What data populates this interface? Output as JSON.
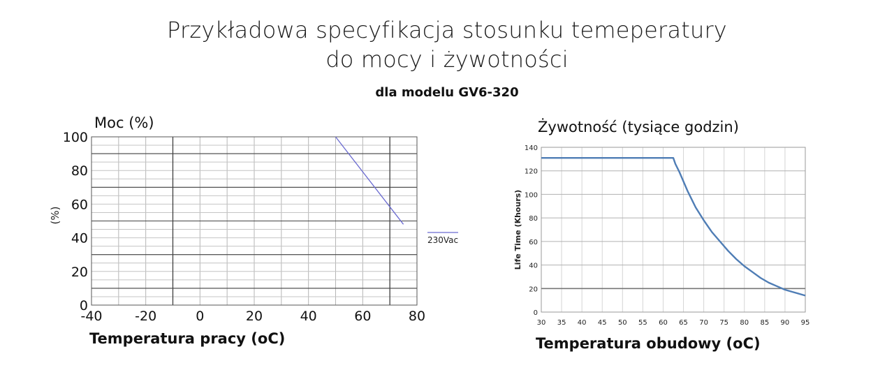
{
  "page": {
    "title_line1": "Przykładowa specyfikacja  stosunku temeperatury",
    "title_line2": "do mocy i żywotności",
    "subtitle": "dla modelu GV6-320"
  },
  "chart_data": [
    {
      "type": "line",
      "heading": "Moc (%)",
      "xlabel": "Temperatura pracy (oC)",
      "ylabel": "(%)",
      "x_ticks": [
        "-40",
        "-20",
        "0",
        "20",
        "40",
        "60",
        "80"
      ],
      "x_tick_values": [
        -40,
        -20,
        0,
        20,
        40,
        60,
        80
      ],
      "y_ticks": [
        "0",
        "20",
        "40",
        "60",
        "80",
        "100"
      ],
      "y_tick_values": [
        0,
        20,
        40,
        60,
        80,
        100
      ],
      "xlim": [
        -40,
        80
      ],
      "ylim": [
        0,
        100
      ],
      "grid": true,
      "legend": "right",
      "series": [
        {
          "name": "230Vac",
          "color": "#6a6ad0",
          "x": [
            50,
            75
          ],
          "y": [
            100,
            48
          ]
        }
      ]
    },
    {
      "type": "line",
      "heading": "Żywotność (tysiące godzin)",
      "xlabel": "Temperatura obudowy (oC)",
      "ylabel": "Life Time (Khours)",
      "x_ticks": [
        "30",
        "35",
        "40",
        "45",
        "50",
        "55",
        "60",
        "65",
        "70",
        "75",
        "80",
        "85",
        "90",
        "95"
      ],
      "x_tick_values": [
        30,
        35,
        40,
        45,
        50,
        55,
        60,
        65,
        70,
        75,
        80,
        85,
        90,
        95
      ],
      "y_ticks": [
        "0",
        "20",
        "40",
        "60",
        "80",
        "100",
        "120",
        "140"
      ],
      "y_tick_values": [
        0,
        20,
        40,
        60,
        80,
        100,
        120,
        140
      ],
      "xlim": [
        30,
        95
      ],
      "ylim": [
        0,
        140
      ],
      "grid": true,
      "reference_line": {
        "y": 20,
        "color": "#777777"
      },
      "series": [
        {
          "color": "#4f7db5",
          "x": [
            30,
            62.5,
            63,
            64,
            65,
            66,
            67,
            68,
            70,
            72,
            74,
            76,
            78,
            80,
            82,
            84,
            86,
            88,
            90,
            92,
            95
          ],
          "y": [
            131,
            131,
            126,
            119,
            111,
            103,
            96,
            89,
            78,
            68,
            60,
            52,
            45,
            39,
            34,
            29,
            25,
            22,
            19,
            17,
            14
          ]
        }
      ]
    }
  ]
}
